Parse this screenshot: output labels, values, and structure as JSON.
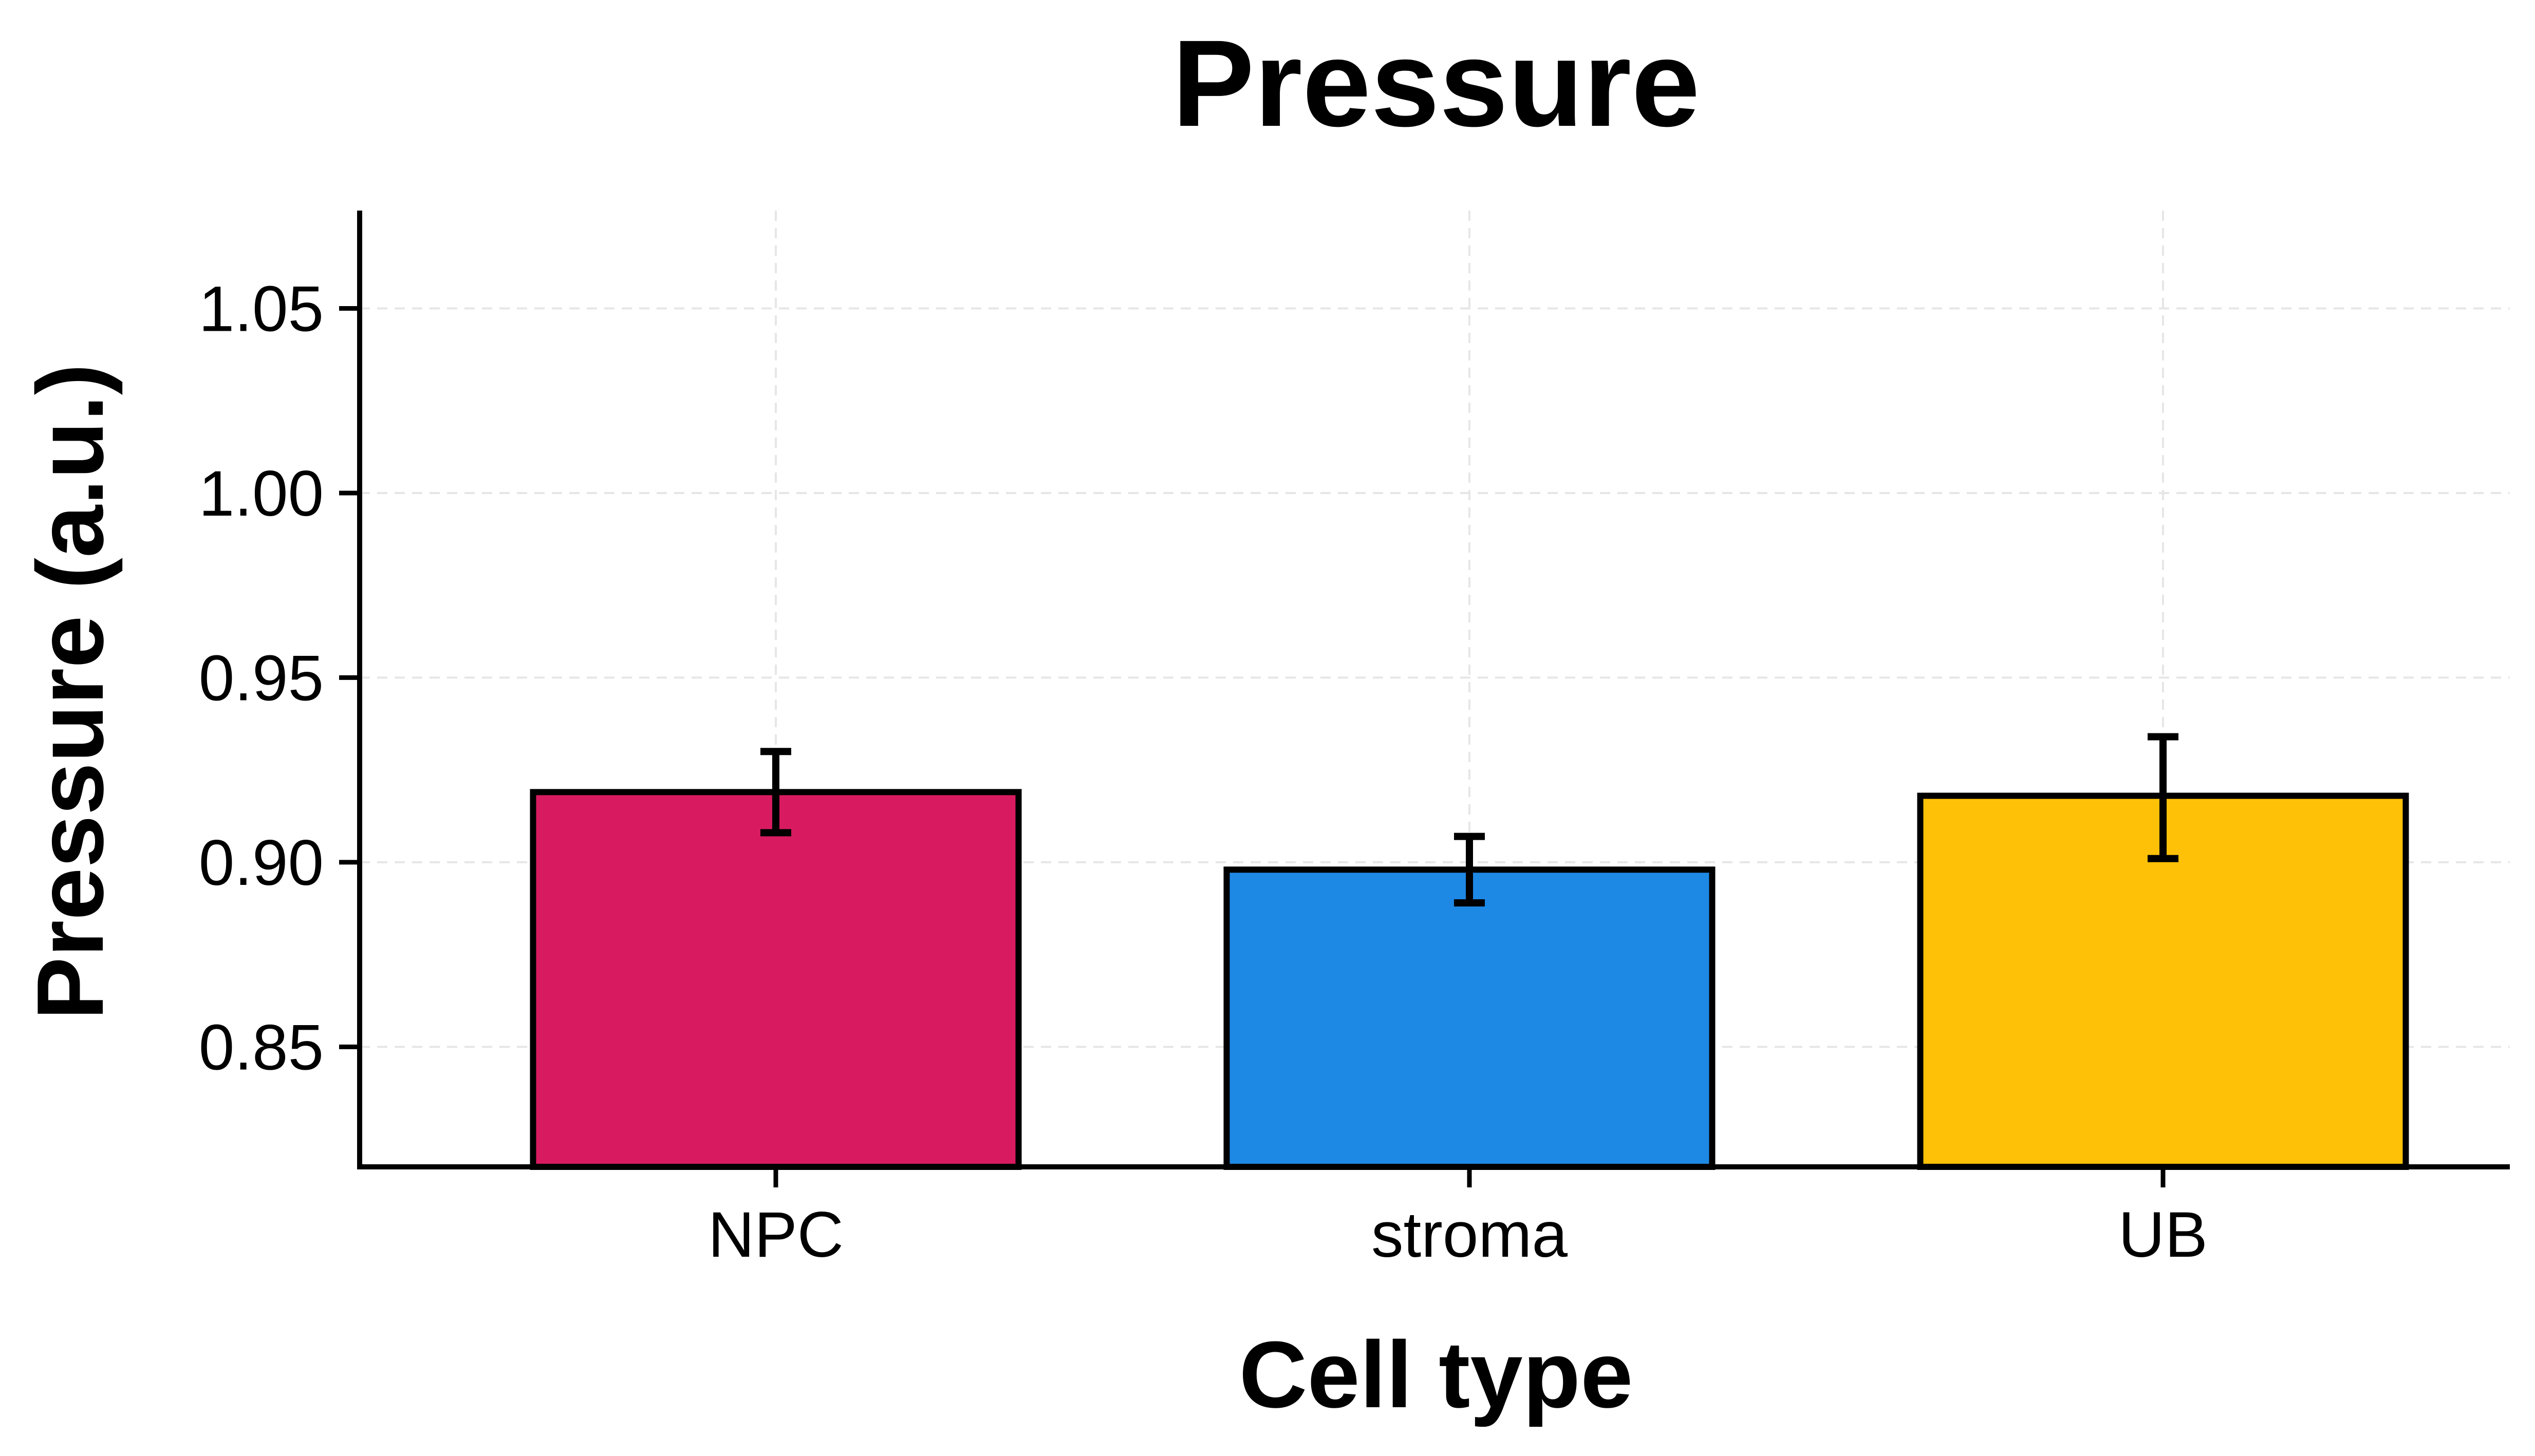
{
  "chart_data": {
    "type": "bar",
    "title": "Pressure",
    "xlabel": "Cell type",
    "ylabel": "Pressure (a.u.)",
    "categories": [
      "NPC",
      "stroma",
      "UB"
    ],
    "values": [
      0.919,
      0.898,
      0.918
    ],
    "error_low": [
      0.908,
      0.889,
      0.901
    ],
    "error_high": [
      0.93,
      0.907,
      0.934
    ],
    "colors": [
      "#d81b60",
      "#1e88e5",
      "#ffc107"
    ],
    "ylim": [
      0.8175,
      1.0765
    ],
    "yticks": [
      0.85,
      0.9,
      0.95,
      1.0,
      1.05
    ],
    "ytick_labels": [
      "0.85",
      "0.90",
      "0.95",
      "1.00",
      "1.05"
    ],
    "grid": true,
    "legend": "none"
  }
}
